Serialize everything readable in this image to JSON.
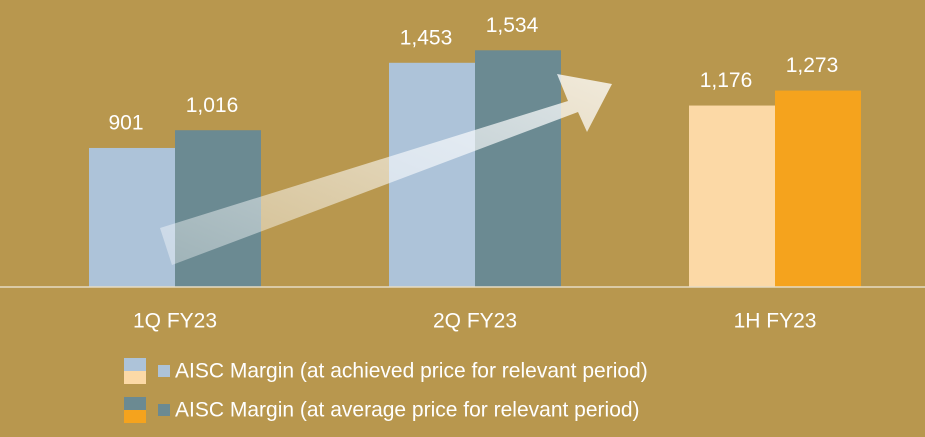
{
  "chart_data": {
    "type": "bar",
    "categories": [
      "1Q FY23",
      "2Q FY23",
      "1H FY23"
    ],
    "series": [
      {
        "name": "AISC Margin (at achieved price for relevant period)",
        "colors": [
          "#adc3d9",
          "#adc3d9",
          "#fcd9a6"
        ],
        "values": [
          901,
          1453,
          1176
        ],
        "value_labels": [
          "901",
          "1,453",
          "1,176"
        ]
      },
      {
        "name": "AISC Margin (at average price for relevant period)",
        "colors": [
          "#6b8a92",
          "#6b8a92",
          "#f5a31d"
        ],
        "values": [
          1016,
          1534,
          1273
        ],
        "value_labels": [
          "1,016",
          "1,534",
          "1,273"
        ]
      }
    ]
  }
}
